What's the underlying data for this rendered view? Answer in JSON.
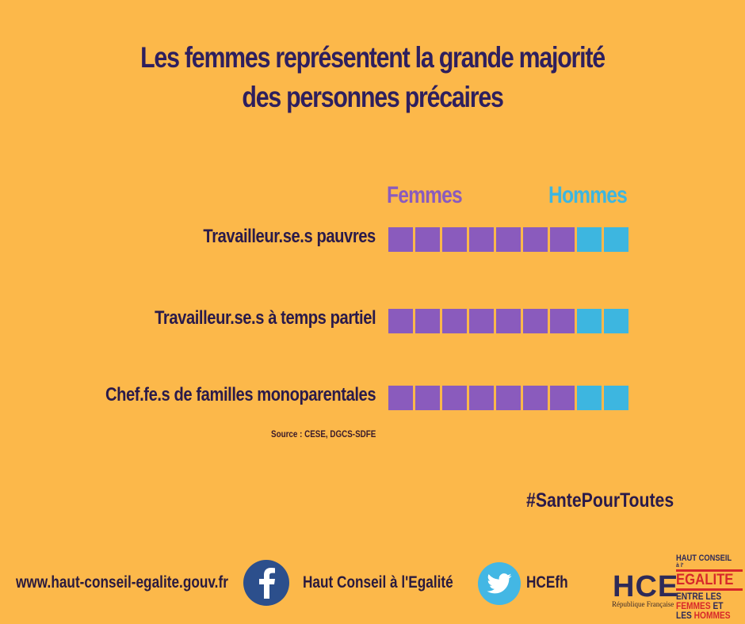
{
  "title": {
    "line1": "Les femmes représentent la grande majorité",
    "line2": "des personnes précaires"
  },
  "colors": {
    "background": "#fcb84a",
    "femmes": "#8a5bbd",
    "hommes": "#3db6e0",
    "text": "#2a1a4a"
  },
  "legend": {
    "femmes": "Femmes",
    "hommes": "Hommes"
  },
  "rows": [
    {
      "label": "Travailleur.se.s pauvres",
      "femmes": 7,
      "hommes": 2
    },
    {
      "label": "Travailleur.se.s à temps partiel",
      "femmes": 7,
      "hommes": 2
    },
    {
      "label": "Chef.fe.s de familles monoparentales",
      "femmes": 7,
      "hommes": 2
    }
  ],
  "source": "Source : CESE, DGCS-SDFE",
  "hashtag": "#SantePourToutes",
  "footer": {
    "website": "www.haut-conseil-egalite.gouv.fr",
    "facebook_icon": "facebook-icon",
    "facebook_label": "Haut Conseil à l'Egalité",
    "twitter_icon": "twitter-icon",
    "twitter_label": "HCEfh",
    "hce_logo": "HCE",
    "hce_subtitle": "République Française",
    "hc_logo": {
      "line1": "HAUT CONSEIL",
      "line2": "à l'",
      "line3": "EGALITE",
      "line4a": "ENTRE LES",
      "line5a": "FEMMES",
      "line5b": " ET",
      "line6a": "LES ",
      "line6b": "HOMMES"
    }
  },
  "chart_data": {
    "type": "bar",
    "subtype": "pictogram-stacked",
    "title": "Les femmes représentent la grande majorité des personnes précaires",
    "categories": [
      "Travailleur.se.s pauvres",
      "Travailleur.se.s à temps partiel",
      "Chef.fe.s de familles monoparentales"
    ],
    "series": [
      {
        "name": "Femmes",
        "values": [
          7,
          7,
          7
        ],
        "color": "#8a5bbd"
      },
      {
        "name": "Hommes",
        "values": [
          2,
          2,
          2
        ],
        "color": "#3db6e0"
      }
    ],
    "unit": "squares out of 9",
    "legend_position": "top",
    "source": "Source : CESE, DGCS-SDFE",
    "grid": false
  }
}
